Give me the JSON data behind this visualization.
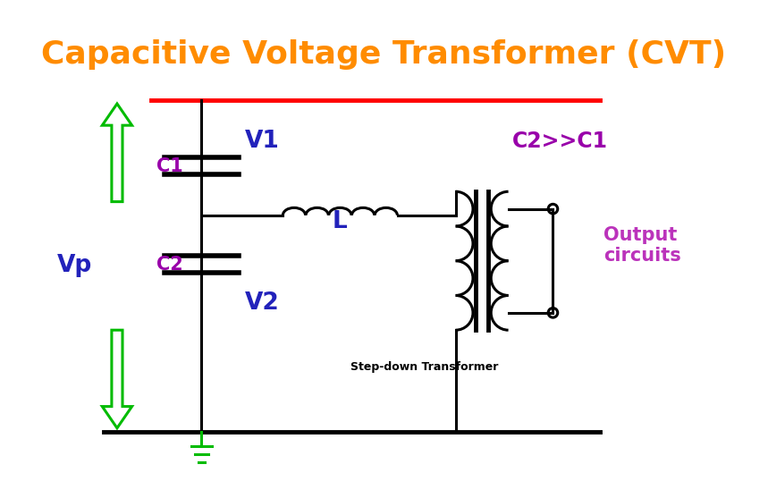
{
  "title": "Capacitive Voltage Transformer (CVT)",
  "title_color": "#FF8C00",
  "title_fontsize": 26,
  "background_color": "#FFFFFF",
  "colors": {
    "black": "#000000",
    "red": "#FF0000",
    "green": "#00BB00",
    "blue": "#2222BB",
    "purple": "#9900AA",
    "magenta": "#BB33BB"
  },
  "labels": {
    "C1": "C1",
    "C2": "C2",
    "V1": "V1",
    "V2": "V2",
    "Vp": "Vp",
    "L": "L",
    "C2gtC1": "C2>>C1",
    "output": "Output\ncircuits",
    "stepdown": "Step-down Transformer"
  }
}
